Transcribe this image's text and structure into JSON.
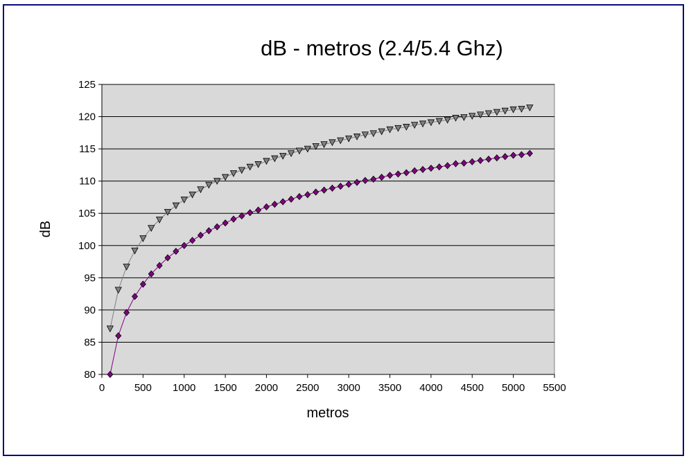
{
  "chart_data": {
    "type": "line",
    "title": "dB - metros (2.4/5.4 Ghz)",
    "xlabel": "metros",
    "ylabel": "dB",
    "xlim": [
      0,
      5500
    ],
    "ylim": [
      80,
      125
    ],
    "x_ticks": [
      0,
      500,
      1000,
      1500,
      2000,
      2500,
      3000,
      3500,
      4000,
      4500,
      5000,
      5500
    ],
    "y_ticks": [
      80,
      85,
      90,
      95,
      100,
      105,
      110,
      115,
      120,
      125
    ],
    "grid": "horizontal",
    "legend": "none",
    "plot_background": "#d9d9d9",
    "x": [
      100,
      200,
      300,
      400,
      500,
      600,
      700,
      800,
      900,
      1000,
      1100,
      1200,
      1300,
      1400,
      1500,
      1600,
      1700,
      1800,
      1900,
      2000,
      2100,
      2200,
      2300,
      2400,
      2500,
      2600,
      2700,
      2800,
      2900,
      3000,
      3100,
      3200,
      3300,
      3400,
      3500,
      3600,
      3700,
      3800,
      3900,
      4000,
      4100,
      4200,
      4300,
      4400,
      4500,
      4600,
      4700,
      4800,
      4900,
      5000,
      5100,
      5200
    ],
    "series": [
      {
        "color": "#808080",
        "marker": "triangle-down",
        "values": [
          87.1,
          93.1,
          96.7,
          99.2,
          101.1,
          102.7,
          104.0,
          105.2,
          106.2,
          107.1,
          107.9,
          108.7,
          109.4,
          110.0,
          110.6,
          111.2,
          111.7,
          112.2,
          112.6,
          113.1,
          113.5,
          113.9,
          114.3,
          114.7,
          115.0,
          115.4,
          115.7,
          116.0,
          116.3,
          116.6,
          116.9,
          117.2,
          117.4,
          117.7,
          118.0,
          118.2,
          118.4,
          118.7,
          118.9,
          119.1,
          119.3,
          119.5,
          119.8,
          119.9,
          120.1,
          120.3,
          120.5,
          120.7,
          120.9,
          121.1,
          121.2,
          121.4
        ]
      },
      {
        "color": "#800080",
        "marker": "diamond",
        "values": [
          80.0,
          86.0,
          89.6,
          92.1,
          94.0,
          95.6,
          96.9,
          98.1,
          99.1,
          100.0,
          100.8,
          101.6,
          102.3,
          102.9,
          103.5,
          104.1,
          104.6,
          105.1,
          105.5,
          106.0,
          106.4,
          106.8,
          107.2,
          107.6,
          107.9,
          108.3,
          108.6,
          108.9,
          109.2,
          109.5,
          109.8,
          110.1,
          110.3,
          110.6,
          110.9,
          111.1,
          111.3,
          111.6,
          111.8,
          112.0,
          112.2,
          112.4,
          112.7,
          112.8,
          113.0,
          113.2,
          113.4,
          113.6,
          113.8,
          114.0,
          114.1,
          114.3
        ]
      }
    ]
  }
}
